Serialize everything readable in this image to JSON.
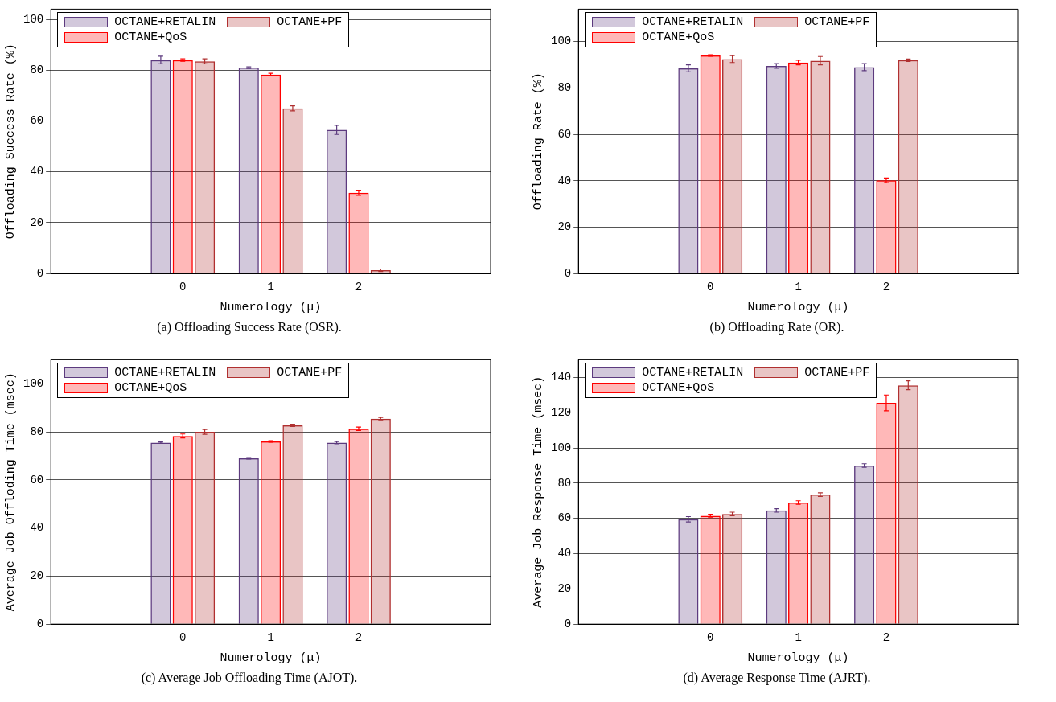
{
  "chart_data": [
    {
      "type": "bar",
      "title": "(a) Offloading Success Rate (OSR).",
      "xlabel": "Numerology (μ)",
      "ylabel": "Offloading Success Rate (%)",
      "x": [
        0,
        1,
        2
      ],
      "xlim": [
        -1.5,
        3.5
      ],
      "xticks": [
        0,
        1,
        2
      ],
      "ylim": [
        0,
        104
      ],
      "yticks": [
        0,
        20,
        40,
        60,
        80,
        100
      ],
      "grid": "y",
      "legend": "top left",
      "series": [
        {
          "name": "OCTANE+RETALIN",
          "color": "#5c3a7e",
          "values": [
            84,
            81,
            56.5
          ],
          "errors": [
            1.5,
            0.3,
            1.8
          ]
        },
        {
          "name": "OCTANE+QoS",
          "color": "#ff0000",
          "values": [
            84,
            78.3,
            31.8
          ],
          "errors": [
            0.5,
            0.5,
            1
          ]
        },
        {
          "name": "OCTANE+PF",
          "color": "#b03030",
          "values": [
            83.5,
            65,
            1.3
          ],
          "errors": [
            1,
            1,
            0.5
          ]
        }
      ]
    },
    {
      "type": "bar",
      "title": "(b) Offloading Rate (OR).",
      "xlabel": "Numerology (μ)",
      "ylabel": "Offloading Rate (%)",
      "x": [
        0,
        1,
        2
      ],
      "xlim": [
        -1.5,
        3.5
      ],
      "xticks": [
        0,
        1,
        2
      ],
      "ylim": [
        0,
        114
      ],
      "yticks": [
        0,
        20,
        40,
        60,
        80,
        100
      ],
      "grid": "y",
      "legend": "top left",
      "series": [
        {
          "name": "OCTANE+RETALIN",
          "color": "#5c3a7e",
          "values": [
            88.5,
            89.5,
            89
          ],
          "errors": [
            1.5,
            1,
            1.5
          ]
        },
        {
          "name": "OCTANE+QoS",
          "color": "#ff0000",
          "values": [
            94,
            91,
            40.2
          ],
          "errors": [
            0.3,
            1,
            1
          ]
        },
        {
          "name": "OCTANE+PF",
          "color": "#b03030",
          "values": [
            92.5,
            91.8,
            92
          ],
          "errors": [
            1.5,
            1.8,
            0.5
          ]
        }
      ]
    },
    {
      "type": "bar",
      "title": "(c) Average Job Offloading Time (AJOT).",
      "xlabel": "Numerology (μ)",
      "ylabel": "Average Job Offloding Time (msec)",
      "x": [
        0,
        1,
        2
      ],
      "xlim": [
        -1.5,
        3.5
      ],
      "xticks": [
        0,
        1,
        2
      ],
      "ylim": [
        0,
        110
      ],
      "yticks": [
        0,
        20,
        40,
        60,
        80,
        100
      ],
      "grid": "y",
      "legend": "top left",
      "series": [
        {
          "name": "OCTANE+RETALIN",
          "color": "#5c3a7e",
          "values": [
            75.5,
            69,
            75.5
          ],
          "errors": [
            0.3,
            0.3,
            0.5
          ]
        },
        {
          "name": "OCTANE+QoS",
          "color": "#ff0000",
          "values": [
            78.3,
            76,
            81.3
          ],
          "errors": [
            0.8,
            0.3,
            0.7
          ]
        },
        {
          "name": "OCTANE+PF",
          "color": "#b03030",
          "values": [
            80,
            82.7,
            85.5
          ],
          "errors": [
            1,
            0.5,
            0.5
          ]
        }
      ]
    },
    {
      "type": "bar",
      "title": "(d) Average Response Time (AJRT).",
      "xlabel": "Numerology (μ)",
      "ylabel": "Average Job Response Time (msec)",
      "x": [
        0,
        1,
        2
      ],
      "xlim": [
        -1.5,
        3.5
      ],
      "xticks": [
        0,
        1,
        2
      ],
      "ylim": [
        0,
        150
      ],
      "yticks": [
        0,
        20,
        40,
        60,
        80,
        100,
        120,
        140
      ],
      "grid": "y",
      "legend": "top left",
      "series": [
        {
          "name": "OCTANE+RETALIN",
          "color": "#5c3a7e",
          "values": [
            59.5,
            64.5,
            90
          ],
          "errors": [
            1.5,
            1,
            1
          ]
        },
        {
          "name": "OCTANE+QoS",
          "color": "#ff0000",
          "values": [
            61.5,
            69,
            125.5
          ],
          "errors": [
            0.8,
            1,
            4.5
          ]
        },
        {
          "name": "OCTANE+PF",
          "color": "#b03030",
          "values": [
            62.5,
            73.5,
            135.5
          ],
          "errors": [
            1,
            1,
            2.5
          ]
        }
      ]
    }
  ]
}
